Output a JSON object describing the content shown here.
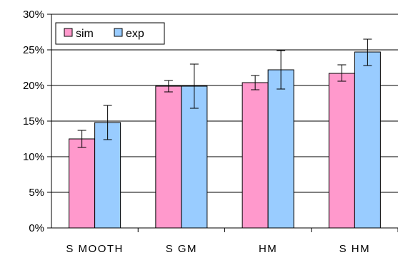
{
  "chart_data": {
    "type": "bar",
    "title": "",
    "xlabel": "",
    "ylabel": "",
    "ylim": [
      0,
      30
    ],
    "y_ticks": [
      "0%",
      "5%",
      "10%",
      "15%",
      "20%",
      "25%",
      "30%"
    ],
    "categories": [
      "S MOOTH",
      "S GM",
      "HM",
      "S HM"
    ],
    "series": [
      {
        "name": "sim",
        "color": "#ff99cc",
        "values": [
          12.5,
          19.9,
          20.4,
          21.7
        ],
        "err_low": [
          11.3,
          19.1,
          19.4,
          20.6
        ],
        "err_high": [
          13.7,
          20.7,
          21.4,
          22.9
        ]
      },
      {
        "name": "exp",
        "color": "#99ccff",
        "values": [
          14.8,
          19.9,
          22.2,
          24.7
        ],
        "err_low": [
          12.4,
          16.8,
          19.5,
          22.8
        ],
        "err_high": [
          17.2,
          23.0,
          24.9,
          26.5
        ]
      }
    ],
    "grid": true,
    "legend": "top-left"
  }
}
